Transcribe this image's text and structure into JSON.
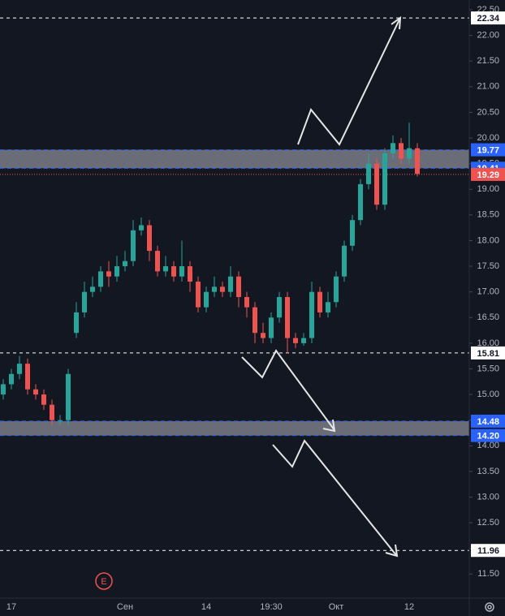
{
  "chart_data": {
    "type": "candlestick",
    "categories": [
      null,
      "17",
      null,
      null,
      null,
      null,
      null,
      null,
      null,
      null,
      null,
      null,
      null,
      null,
      null,
      "Сен",
      null,
      null,
      null,
      null,
      null,
      null,
      null,
      null,
      null,
      "14",
      null,
      null,
      null,
      null,
      null,
      null,
      null,
      "19:30",
      null,
      null,
      null,
      null,
      null,
      null,
      null,
      "Окт",
      null,
      null,
      null,
      null,
      null,
      null,
      null,
      null,
      "12",
      null
    ],
    "open": [
      15.0,
      15.2,
      15.4,
      15.6,
      15.1,
      15.0,
      14.8,
      14.5,
      14.5,
      16.2,
      16.6,
      17.0,
      17.1,
      17.4,
      17.3,
      17.5,
      17.6,
      18.2,
      18.3,
      17.8,
      17.4,
      17.5,
      17.3,
      17.5,
      17.2,
      16.7,
      17.0,
      17.1,
      17.0,
      17.3,
      16.9,
      16.7,
      16.2,
      16.1,
      16.5,
      16.9,
      16.1,
      16.0,
      16.1,
      17.0,
      16.6,
      16.8,
      17.3,
      17.9,
      18.4,
      19.1,
      19.5,
      18.7,
      19.7,
      19.9,
      19.6,
      19.8
    ],
    "high": [
      15.3,
      15.5,
      15.75,
      15.7,
      15.2,
      15.1,
      14.9,
      14.6,
      15.5,
      16.8,
      17.2,
      17.3,
      17.5,
      17.6,
      17.7,
      17.8,
      18.4,
      18.45,
      18.4,
      17.9,
      17.7,
      17.6,
      18.0,
      17.6,
      17.3,
      17.1,
      17.3,
      17.2,
      17.5,
      17.4,
      17.0,
      16.8,
      16.4,
      16.6,
      17.0,
      17.0,
      16.2,
      16.2,
      17.2,
      17.1,
      17.0,
      17.4,
      18.0,
      18.5,
      19.2,
      19.7,
      19.6,
      19.8,
      20.05,
      20.0,
      20.3,
      19.9
    ],
    "low": [
      14.9,
      15.1,
      15.3,
      15.0,
      14.9,
      14.7,
      14.4,
      14.4,
      14.4,
      16.1,
      16.5,
      16.9,
      17.0,
      17.1,
      17.2,
      17.4,
      17.5,
      18.1,
      17.6,
      17.3,
      17.3,
      17.2,
      17.2,
      17.0,
      16.6,
      16.6,
      16.9,
      16.9,
      16.9,
      16.7,
      16.5,
      16.0,
      16.0,
      16.0,
      16.4,
      15.8,
      15.9,
      15.95,
      16.0,
      16.5,
      16.5,
      16.7,
      17.2,
      17.8,
      18.3,
      19.0,
      18.6,
      18.6,
      19.6,
      19.5,
      19.5,
      19.25
    ],
    "close": [
      15.2,
      15.4,
      15.6,
      15.1,
      15.0,
      14.8,
      14.5,
      14.5,
      15.4,
      16.6,
      17.0,
      17.1,
      17.4,
      17.3,
      17.5,
      17.6,
      18.2,
      18.3,
      17.8,
      17.4,
      17.5,
      17.3,
      17.5,
      17.2,
      16.7,
      17.0,
      17.1,
      17.0,
      17.3,
      16.9,
      16.7,
      16.2,
      16.1,
      16.5,
      16.9,
      16.1,
      16.0,
      16.1,
      17.0,
      16.6,
      16.8,
      17.3,
      17.9,
      18.4,
      19.1,
      19.5,
      18.7,
      19.7,
      19.9,
      19.6,
      19.8,
      19.3
    ],
    "up_color": "#26a69a",
    "down_color": "#ef5350",
    "ylim": [
      11.03,
      22.69
    ],
    "yticks": [
      {
        "value": 11.5,
        "label": "11.50"
      },
      {
        "value": 12.0,
        "label": "12.00"
      },
      {
        "value": 12.5,
        "label": "12.50"
      },
      {
        "value": 13.0,
        "label": "13.00"
      },
      {
        "value": 13.5,
        "label": "13.50"
      },
      {
        "value": 14.0,
        "label": "14.00"
      },
      {
        "value": 14.5,
        "label": "14.50"
      },
      {
        "value": 15.0,
        "label": "15.00"
      },
      {
        "value": 15.5,
        "label": "15.50"
      },
      {
        "value": 16.0,
        "label": "16.00"
      },
      {
        "value": 16.5,
        "label": "16.50"
      },
      {
        "value": 17.0,
        "label": "17.00"
      },
      {
        "value": 17.5,
        "label": "17.50"
      },
      {
        "value": 18.0,
        "label": "18.00"
      },
      {
        "value": 18.5,
        "label": "18.50"
      },
      {
        "value": 19.0,
        "label": "19.00"
      },
      {
        "value": 19.5,
        "label": "19.50"
      },
      {
        "value": 20.0,
        "label": "20.00"
      },
      {
        "value": 20.5,
        "label": "20.50"
      },
      {
        "value": 21.0,
        "label": "21.00"
      },
      {
        "value": 21.5,
        "label": "21.50"
      },
      {
        "value": 22.0,
        "label": "22.00"
      },
      {
        "value": 22.5,
        "label": "22.50"
      }
    ],
    "levels": [
      {
        "value": 22.34,
        "label": "22.34"
      },
      {
        "value": 15.81,
        "label": "15.81"
      },
      {
        "value": 11.96,
        "label": "11.96"
      }
    ],
    "level_color": "#ffffff",
    "zones": [
      {
        "low": {
          "value": 19.41,
          "label": "19.41"
        },
        "high": {
          "value": 19.77,
          "label": "19.77"
        }
      },
      {
        "low": {
          "value": 14.2,
          "label": "14.20"
        },
        "high": {
          "value": 14.48,
          "label": "14.48"
        }
      }
    ],
    "zone_color": "#2962ff",
    "last_price": {
      "value": 19.29,
      "label": "19.29"
    },
    "last_price_color": "#ef5350",
    "event_marker": "E"
  }
}
